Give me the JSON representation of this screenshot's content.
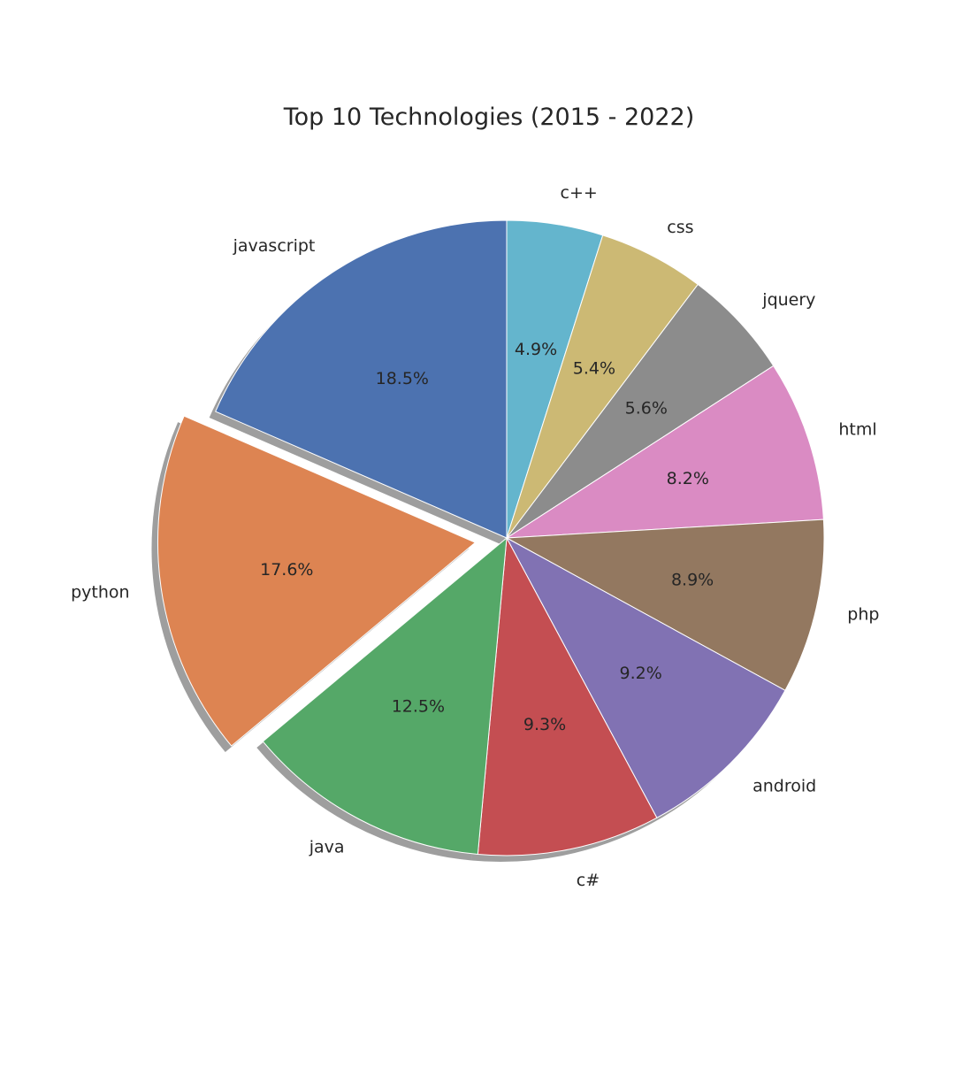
{
  "chart_data": {
    "type": "pie",
    "title": "Top 10 Technologies (2015 - 2022)",
    "categories": [
      "c++",
      "css",
      "jquery",
      "html",
      "php",
      "android",
      "c#",
      "java",
      "python",
      "javascript"
    ],
    "values": [
      4.9,
      5.4,
      5.6,
      8.2,
      8.9,
      9.2,
      9.3,
      12.5,
      17.6,
      18.5
    ],
    "value_labels": [
      "4.9%",
      "5.4%",
      "5.6%",
      "8.2%",
      "8.9%",
      "9.2%",
      "9.3%",
      "12.5%",
      "17.6%",
      "18.5%"
    ],
    "colors": [
      "#64b5cd",
      "#ccb974",
      "#8c8c8c",
      "#da8bc3",
      "#937860",
      "#8172b3",
      "#c44e52",
      "#55a868",
      "#dd8452",
      "#4c72b0"
    ],
    "exploded": [
      "python"
    ],
    "shadow": true,
    "start": "12 o'clock, clockwise",
    "legend": "none"
  }
}
